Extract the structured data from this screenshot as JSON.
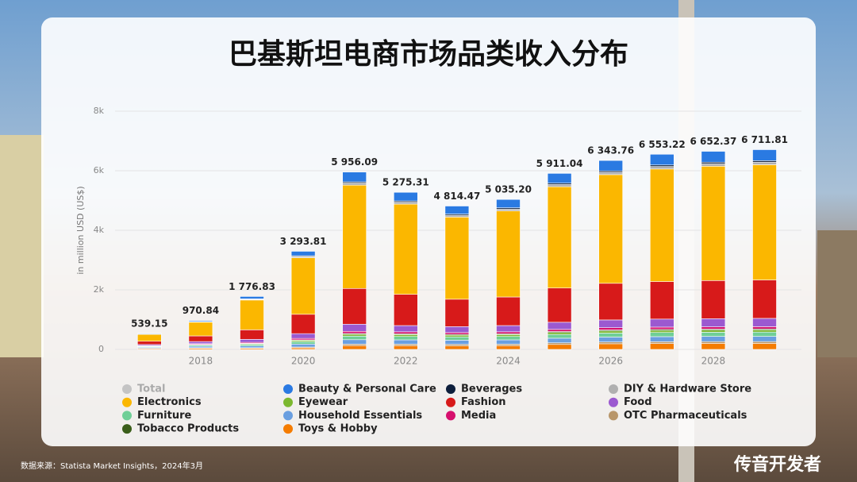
{
  "chart_data": {
    "type": "stacked_bar",
    "title": "巴基斯坦电商市场品类收入分布",
    "ylabel": "in million USD (US$)",
    "categories": [
      null,
      "2018",
      null,
      "2020",
      null,
      "2022",
      null,
      "2024",
      null,
      "2026",
      null,
      "2028",
      null
    ],
    "ylim": [
      0,
      8000
    ],
    "yticks": [
      0,
      {
        "value": 2000,
        "label": "2k"
      },
      {
        "value": 4000,
        "label": "4k"
      },
      {
        "value": 6000,
        "label": "6k"
      },
      {
        "value": 8000,
        "label": "8k"
      }
    ],
    "grid": true,
    "series": [
      {
        "name": "Total",
        "color": "#c4c4c4",
        "values": [
          539.15,
          970.84,
          1776.83,
          3293.81,
          5956.09,
          5275.31,
          4814.47,
          5035.2,
          5911.04,
          6343.76,
          6553.22,
          6652.37,
          6711.81
        ],
        "value_labels": [
          "539.15",
          "970.84",
          "1 776.83",
          "3 293.81",
          "5 956.09",
          "5 275.31",
          "4 814.47",
          "5 035.20",
          "5 911.04",
          "6 343.76",
          "6 553.22",
          "6 652.37",
          "6 711.81"
        ]
      },
      {
        "name": "Beauty & Personal Care",
        "color": "#2a7ae2",
        "values": [
          20,
          35,
          80,
          150,
          330,
          290,
          270,
          280,
          330,
          350,
          360,
          365,
          370
        ]
      },
      {
        "name": "Beverages",
        "color": "#0d1f3c",
        "values": [
          5,
          8,
          15,
          25,
          40,
          40,
          40,
          40,
          45,
          45,
          50,
          50,
          50
        ]
      },
      {
        "name": "DIY & Hardware Store",
        "color": "#b0b0b0",
        "values": [
          10,
          15,
          25,
          40,
          70,
          65,
          60,
          65,
          75,
          80,
          85,
          85,
          85
        ]
      },
      {
        "name": "Electronics",
        "color": "#fbb700",
        "values": [
          230,
          460,
          1000,
          1900,
          3470,
          3030,
          2759,
          2890,
          3400,
          3650,
          3780,
          3840,
          3870
        ]
      },
      {
        "name": "Eyewear",
        "color": "#7cb82f",
        "values": [
          10,
          15,
          25,
          40,
          60,
          60,
          55,
          60,
          65,
          70,
          70,
          70,
          70
        ]
      },
      {
        "name": "Fashion",
        "color": "#d71a1a",
        "values": [
          110,
          190,
          320,
          650,
          1200,
          1050,
          920,
          960,
          1150,
          1230,
          1260,
          1280,
          1290
        ]
      },
      {
        "name": "Food",
        "color": "#9b59d0",
        "values": [
          40,
          70,
          100,
          160,
          240,
          210,
          200,
          210,
          240,
          260,
          270,
          275,
          280
        ]
      },
      {
        "name": "Furniture",
        "color": "#6fcf97",
        "values": [
          25,
          40,
          50,
          80,
          120,
          115,
          110,
          115,
          125,
          135,
          140,
          140,
          145
        ]
      },
      {
        "name": "Household Essentials",
        "color": "#6a9fe0",
        "values": [
          30,
          50,
          60,
          100,
          150,
          145,
          140,
          145,
          155,
          165,
          170,
          175,
          175
        ]
      },
      {
        "name": "Media",
        "color": "#d6106e",
        "values": [
          15,
          25,
          35,
          50,
          70,
          65,
          60,
          65,
          70,
          75,
          75,
          75,
          75
        ]
      },
      {
        "name": "OTC Pharmaceuticals",
        "color": "#b8966a",
        "values": [
          10,
          15,
          20,
          30,
          50,
          50,
          50,
          50,
          55,
          60,
          60,
          60,
          60
        ]
      },
      {
        "name": "Tobacco Products",
        "color": "#3a5e1a",
        "values": [
          5,
          8,
          12,
          20,
          30,
          30,
          30,
          30,
          35,
          35,
          35,
          35,
          35
        ]
      },
      {
        "name": "Toys & Hobby",
        "color": "#f57c00",
        "values": [
          29,
          40,
          35,
          49,
          126,
          125,
          120,
          125,
          166,
          189,
          198,
          202,
          202
        ]
      }
    ]
  },
  "source": "数据来源：Statista Market Insights，2024年3月",
  "brand": "传音开发者"
}
